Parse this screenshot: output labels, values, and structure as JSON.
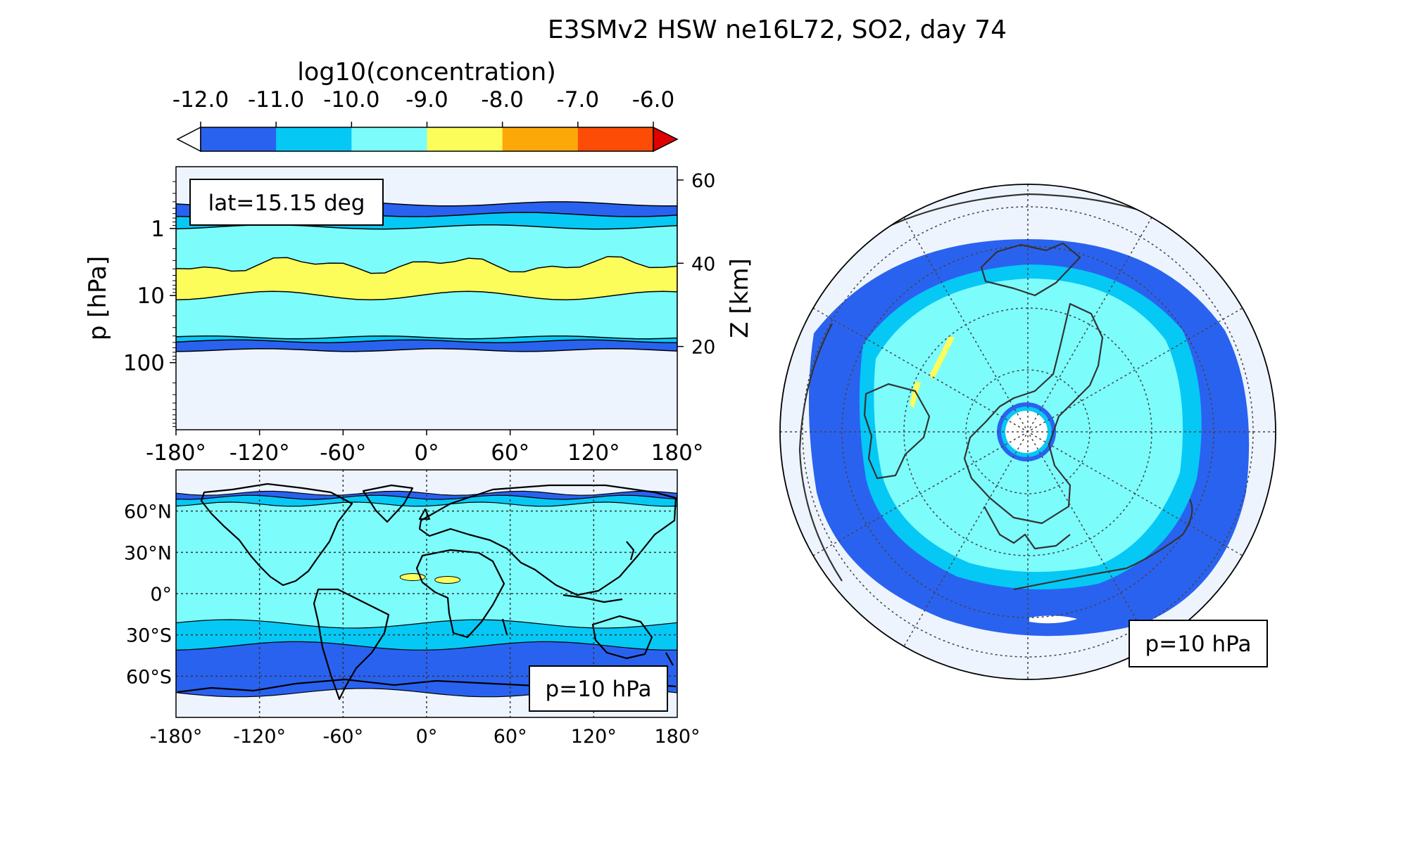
{
  "title": "E3SMv2 HSW ne16L72, SO2, day 74",
  "colorbar": {
    "label": "log10(concentration)",
    "ticks": [
      "-12.0",
      "-11.0",
      "-10.0",
      "-9.0",
      "-8.0",
      "-7.0",
      "-6.0"
    ],
    "levels": [
      -12,
      -11,
      -10,
      -9,
      -8,
      -7,
      -6
    ],
    "colors": [
      "#2a62f0",
      "#06c8f5",
      "#7dfcfc",
      "#fcfc5a",
      "#fca808",
      "#fc4c06"
    ],
    "under_color": "#ffffff",
    "over_color": "#e00000",
    "extend": "both"
  },
  "chart_data": [
    {
      "type": "heatmap",
      "name": "zonal cross-section",
      "annotation": "lat=15.15 deg",
      "xlabel": "",
      "ylabel": "p  [hPa]",
      "y2label": "Z [km]",
      "x_ticks": [
        "-180°",
        "-120°",
        "-60°",
        "0°",
        "60°",
        "120°",
        "180°"
      ],
      "y_ticks": [
        "1",
        "10",
        "100"
      ],
      "y2_ticks": [
        "60",
        "40",
        "20"
      ],
      "y_scale": "log",
      "xlim": [
        -180,
        180
      ],
      "ylim_hPa": [
        1000,
        0.12
      ],
      "fields": [
        {
          "level_range": [
            -12,
            -11
          ],
          "top_hPa": 0.43,
          "bottom_hPa": 65
        },
        {
          "level_range": [
            -11,
            -10
          ],
          "top_hPa": 0.62,
          "bottom_hPa": 48
        },
        {
          "level_range": [
            -10,
            -9
          ],
          "top_hPa": 0.95,
          "bottom_hPa": 42
        },
        {
          "level_range": [
            -9,
            -8
          ],
          "top_hPa": 3.5,
          "bottom_hPa": 10
        }
      ],
      "background_color": "#eef4fe"
    },
    {
      "type": "heatmap",
      "name": "lat-lon map",
      "annotation": "p=10 hPa",
      "x_ticks": [
        "-180°",
        "-120°",
        "-60°",
        "0°",
        "60°",
        "120°",
        "180°"
      ],
      "y_ticks": [
        "60°N",
        "30°N",
        "0°",
        "30°S",
        "60°S"
      ],
      "xlim": [
        -180,
        180
      ],
      "ylim": [
        -90,
        90
      ],
      "bands_lat": [
        {
          "level_range": [
            -12,
            -11
          ],
          "lat_north": 73,
          "lat_south": -72
        },
        {
          "level_range": [
            -11,
            -10
          ],
          "lat_north": 70,
          "lat_south": -38
        },
        {
          "level_range": [
            -10,
            -9
          ],
          "lat_north": 65,
          "lat_south": -22
        }
      ],
      "yellow_patches": [
        {
          "lon": -10,
          "lat": 12
        },
        {
          "lon": 15,
          "lat": 10
        }
      ],
      "background_color": "#eef4fe"
    },
    {
      "type": "heatmap",
      "name": "polar view",
      "annotation": "p=10 hPa",
      "projection": "orthographic, north pole",
      "background_color": "#eef4fe"
    }
  ]
}
